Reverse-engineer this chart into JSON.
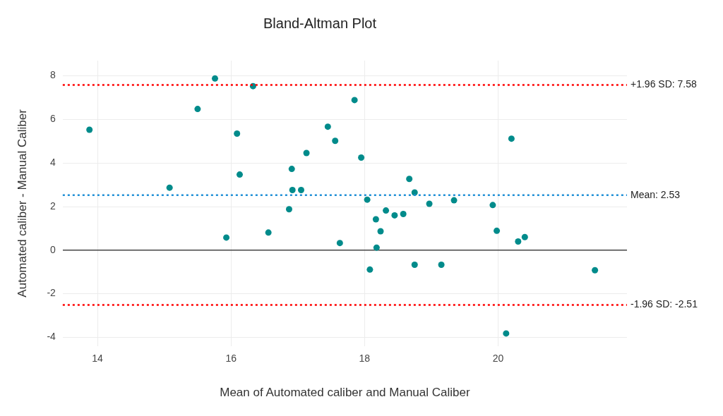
{
  "chart_data": {
    "type": "scatter",
    "title": "Bland-Altman Plot",
    "xlabel": "Mean of Automated caliber and Manual Caliber",
    "ylabel": "Automated caliber - Manual Caliber",
    "xlim": [
      13.48,
      21.93
    ],
    "xticks": [
      14,
      16,
      18,
      20
    ],
    "ylim": [
      -4.4,
      8.7
    ],
    "yticks": [
      -4,
      -2,
      0,
      2,
      4,
      6,
      8
    ],
    "grid": true,
    "legend": false,
    "marker": "circle",
    "series": [
      {
        "color": "#008b8b",
        "x": [
          13.88,
          15.5,
          15.76,
          16.33,
          16.09,
          16.13,
          15.08,
          15.93,
          16.56,
          16.91,
          16.92,
          17.05,
          16.87,
          17.13,
          17.45,
          17.56,
          17.63,
          17.85,
          17.95,
          18.04,
          18.67,
          18.75,
          18.97,
          19.34,
          18.32,
          18.45,
          18.58,
          18.17,
          18.24,
          18.18,
          19.92,
          19.98,
          20.2,
          20.3,
          20.4,
          18.08,
          18.75,
          19.15,
          20.12,
          21.45
        ],
        "values": [
          5.53,
          6.48,
          7.88,
          7.53,
          5.35,
          3.47,
          2.87,
          0.58,
          0.81,
          3.73,
          2.76,
          2.76,
          1.88,
          4.46,
          5.67,
          5.02,
          0.33,
          6.89,
          4.25,
          2.32,
          3.27,
          2.65,
          2.13,
          2.29,
          1.82,
          1.6,
          1.66,
          1.42,
          0.87,
          0.12,
          2.07,
          0.89,
          5.12,
          0.4,
          0.6,
          -0.89,
          -0.67,
          -0.67,
          -3.82,
          -0.92
        ]
      }
    ],
    "ref_lines": [
      {
        "axis": "y",
        "value": 7.58,
        "label": "+1.96 SD: 7.58",
        "color": "#ff0000",
        "line_style": "dotted"
      },
      {
        "axis": "y",
        "value": 2.53,
        "label": "Mean: 2.53",
        "color": "#1f8fd6",
        "line_style": "dotted"
      },
      {
        "axis": "y",
        "value": -2.51,
        "label": "-1.96 SD: -2.51",
        "color": "#ff0000",
        "line_style": "dotted"
      }
    ]
  }
}
